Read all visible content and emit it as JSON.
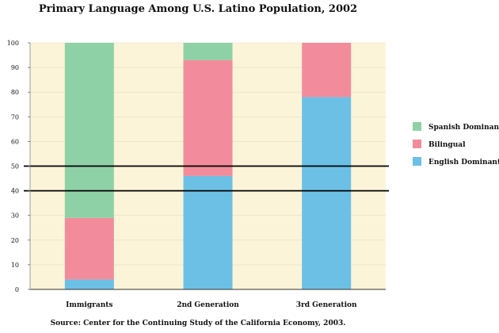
{
  "chart_data": {
    "type": "bar",
    "stacked": true,
    "title": "Primary Language Among U.S. Latino Population, 2002",
    "source": "Source: Center for the Continuing Study of the California Economy, 2003.",
    "categories": [
      "Immigrants",
      "2nd Generation",
      "3rd Generation"
    ],
    "series": [
      {
        "name": "English Dominant",
        "color": "#6cc0e5",
        "values": [
          4,
          46,
          78
        ]
      },
      {
        "name": "Bilingual",
        "color": "#f28c9c",
        "values": [
          25,
          47,
          22
        ]
      },
      {
        "name": "Spanish Dominant",
        "color": "#8fd1a7",
        "values": [
          71,
          7,
          0
        ]
      }
    ],
    "ylim": [
      0,
      100
    ],
    "yticks": [
      0,
      10,
      20,
      30,
      40,
      50,
      60,
      70,
      80,
      90,
      100
    ],
    "reference_lines": [
      40,
      50
    ],
    "legend_position": "right",
    "plot_background": "#fbf4d8"
  }
}
